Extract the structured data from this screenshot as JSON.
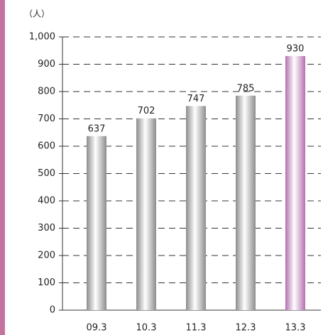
{
  "chart_data": {
    "type": "bar",
    "unit_label": "（人）",
    "categories": [
      "09.3",
      "10.3",
      "11.3",
      "12.3",
      "13.3"
    ],
    "values": [
      637,
      702,
      747,
      785,
      930
    ],
    "colors": [
      "#8c8c8c",
      "#8c8c8c",
      "#8c8c8c",
      "#8c8c8c",
      "#b46fb0"
    ],
    "ylim": [
      0,
      1000
    ],
    "yticks": [
      0,
      100,
      200,
      300,
      400,
      500,
      600,
      700,
      800,
      900,
      {
        "value": 1000,
        "label": "1,000"
      }
    ],
    "grid": true
  }
}
